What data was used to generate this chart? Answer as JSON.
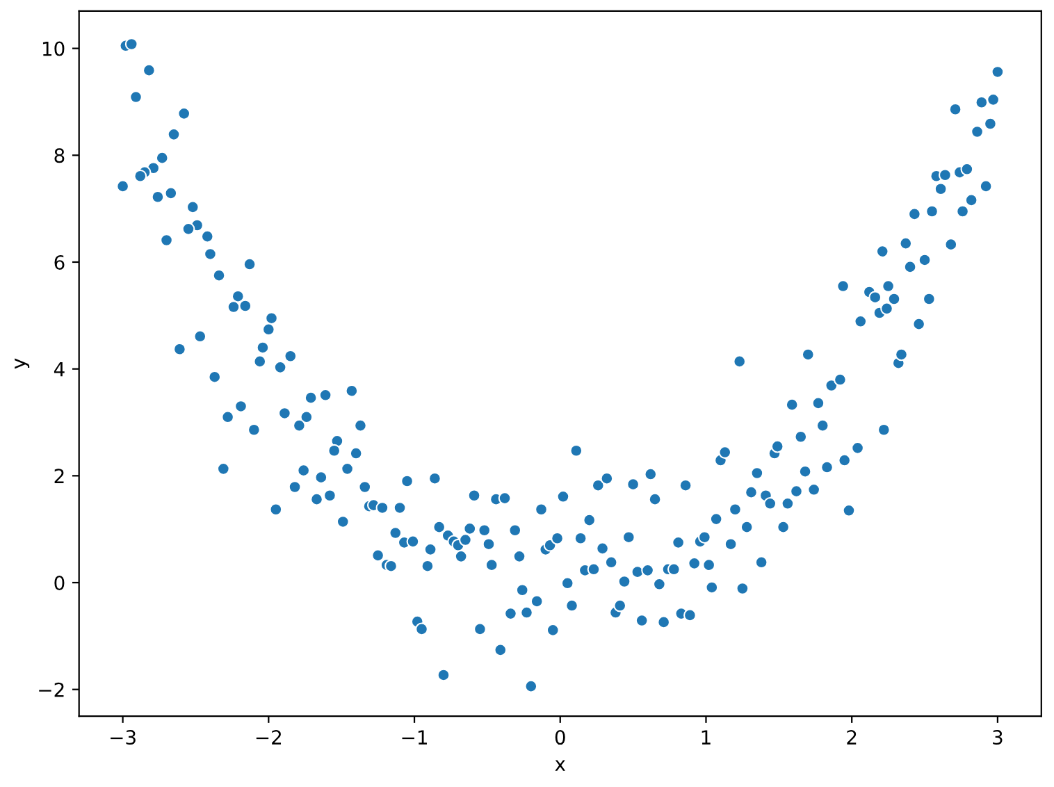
{
  "chart_data": {
    "type": "scatter",
    "xlabel": "x",
    "ylabel": "y",
    "color": "#1f77b4",
    "marker": "circle",
    "grid": false,
    "xlim": [
      -3.3,
      3.3
    ],
    "ylim": [
      -2.5,
      10.7
    ],
    "xticks": [
      {
        "value": -3,
        "label": "−3"
      },
      {
        "value": -2,
        "label": "−2"
      },
      {
        "value": -1,
        "label": "−1"
      },
      0,
      1,
      2,
      3
    ],
    "yticks": [
      {
        "value": -2,
        "label": "−2"
      },
      0,
      2,
      4,
      6,
      8,
      10
    ],
    "x": [
      -2.98,
      -2.94,
      -2.82,
      -2.91,
      -2.58,
      -2.65,
      -2.73,
      -2.79,
      -2.85,
      -2.88,
      -3.0,
      -2.76,
      -2.67,
      -2.52,
      -2.49,
      -2.55,
      -2.42,
      -2.7,
      -2.4,
      -2.13,
      -2.34,
      -2.21,
      -2.24,
      -2.16,
      -1.98,
      -2.0,
      -2.47,
      -2.61,
      -2.04,
      -1.85,
      -2.06,
      -1.92,
      -2.37,
      -1.43,
      -1.61,
      -1.71,
      -2.19,
      -2.28,
      -1.89,
      -1.74,
      -1.79,
      -2.1,
      -1.37,
      -1.53,
      -1.55,
      -1.4,
      -2.31,
      -1.76,
      -1.46,
      -1.64,
      -1.05,
      -1.82,
      -1.34,
      -1.58,
      -1.67,
      -1.95,
      -1.31,
      -1.28,
      -1.22,
      -1.1,
      -1.49,
      -1.13,
      -1.07,
      -1.25,
      -1.19,
      -1.16,
      -0.86,
      -1.01,
      -0.91,
      -0.89,
      -0.83,
      -0.77,
      -0.73,
      -0.7,
      -0.68,
      -0.65,
      -0.62,
      -0.59,
      -0.52,
      -0.49,
      -0.47,
      -0.44,
      -0.38,
      -0.31,
      -0.28,
      -0.26,
      -0.34,
      -0.23,
      -0.16,
      -0.13,
      -0.1,
      -0.07,
      -0.02,
      0.02,
      -0.05,
      -0.55,
      -0.41,
      -0.8,
      -0.2,
      -0.98,
      -0.95,
      0.11,
      0.05,
      0.08,
      0.14,
      0.17,
      0.2,
      0.23,
      0.26,
      0.32,
      0.29,
      0.35,
      0.38,
      0.41,
      0.44,
      0.47,
      0.5,
      0.53,
      0.56,
      0.6,
      0.62,
      0.65,
      0.68,
      0.71,
      0.74,
      0.78,
      0.81,
      0.83,
      0.86,
      0.89,
      0.92,
      0.96,
      0.99,
      1.02,
      1.04,
      1.07,
      1.1,
      1.13,
      1.17,
      1.2,
      1.25,
      1.28,
      1.31,
      1.35,
      1.38,
      1.41,
      1.44,
      1.47,
      1.49,
      1.53,
      1.56,
      1.59,
      1.62,
      1.65,
      1.68,
      1.74,
      1.77,
      1.8,
      1.83,
      1.86,
      1.92,
      1.95,
      1.98,
      2.04,
      2.22,
      1.23,
      1.7,
      1.94,
      2.06,
      2.12,
      2.16,
      2.19,
      2.24,
      2.21,
      2.25,
      2.29,
      2.32,
      2.34,
      2.37,
      2.4,
      2.43,
      2.46,
      2.5,
      2.53,
      2.55,
      2.58,
      2.61,
      2.64,
      2.68,
      2.71,
      2.74,
      2.76,
      2.79,
      2.82,
      2.86,
      2.89,
      2.92,
      2.95,
      2.97,
      3.0
    ],
    "values": [
      10.05,
      10.08,
      9.59,
      9.09,
      8.78,
      8.39,
      7.95,
      7.76,
      7.68,
      7.61,
      7.42,
      7.22,
      7.29,
      7.03,
      6.69,
      6.62,
      6.48,
      6.41,
      6.15,
      5.96,
      5.75,
      5.36,
      5.16,
      5.18,
      4.95,
      4.74,
      4.61,
      4.37,
      4.4,
      4.24,
      4.14,
      4.03,
      3.85,
      3.59,
      3.51,
      3.46,
      3.3,
      3.1,
      3.17,
      3.1,
      2.94,
      2.86,
      2.94,
      2.65,
      2.47,
      2.42,
      2.13,
      2.1,
      2.13,
      1.97,
      1.9,
      1.79,
      1.79,
      1.63,
      1.56,
      1.37,
      1.43,
      1.45,
      1.4,
      1.4,
      1.14,
      0.93,
      0.75,
      0.51,
      0.33,
      0.31,
      1.95,
      0.77,
      0.31,
      0.62,
      1.04,
      0.88,
      0.77,
      0.7,
      0.49,
      0.8,
      1.01,
      1.63,
      0.98,
      0.72,
      0.33,
      1.56,
      1.58,
      0.98,
      0.49,
      -0.14,
      -0.58,
      -0.56,
      -0.35,
      1.37,
      0.62,
      0.7,
      0.83,
      1.61,
      -0.89,
      -0.87,
      -1.26,
      -1.73,
      -1.94,
      -0.73,
      -0.87,
      2.47,
      -0.01,
      -0.43,
      0.83,
      0.23,
      1.17,
      0.25,
      1.82,
      1.95,
      0.64,
      0.38,
      -0.56,
      -0.43,
      0.02,
      0.85,
      1.84,
      0.2,
      -0.71,
      0.23,
      2.03,
      1.56,
      -0.03,
      -0.74,
      0.25,
      0.25,
      0.75,
      -0.58,
      1.82,
      -0.61,
      0.36,
      0.77,
      0.85,
      0.33,
      -0.09,
      1.19,
      2.29,
      2.44,
      0.72,
      1.37,
      -0.11,
      1.04,
      1.69,
      2.05,
      0.38,
      1.63,
      1.48,
      2.42,
      2.55,
      1.04,
      1.48,
      3.33,
      1.71,
      2.73,
      2.08,
      1.74,
      3.36,
      2.94,
      2.16,
      3.69,
      3.8,
      2.29,
      1.35,
      2.52,
      2.86,
      4.14,
      4.27,
      5.55,
      4.89,
      5.44,
      5.34,
      5.05,
      5.13,
      6.2,
      5.55,
      5.31,
      4.11,
      4.27,
      6.35,
      5.91,
      6.9,
      4.84,
      6.04,
      5.31,
      6.95,
      7.61,
      7.37,
      7.63,
      6.33,
      8.86,
      7.68,
      6.95,
      7.74,
      7.16,
      8.44,
      8.99,
      7.42,
      8.59,
      9.04,
      9.56
    ]
  }
}
